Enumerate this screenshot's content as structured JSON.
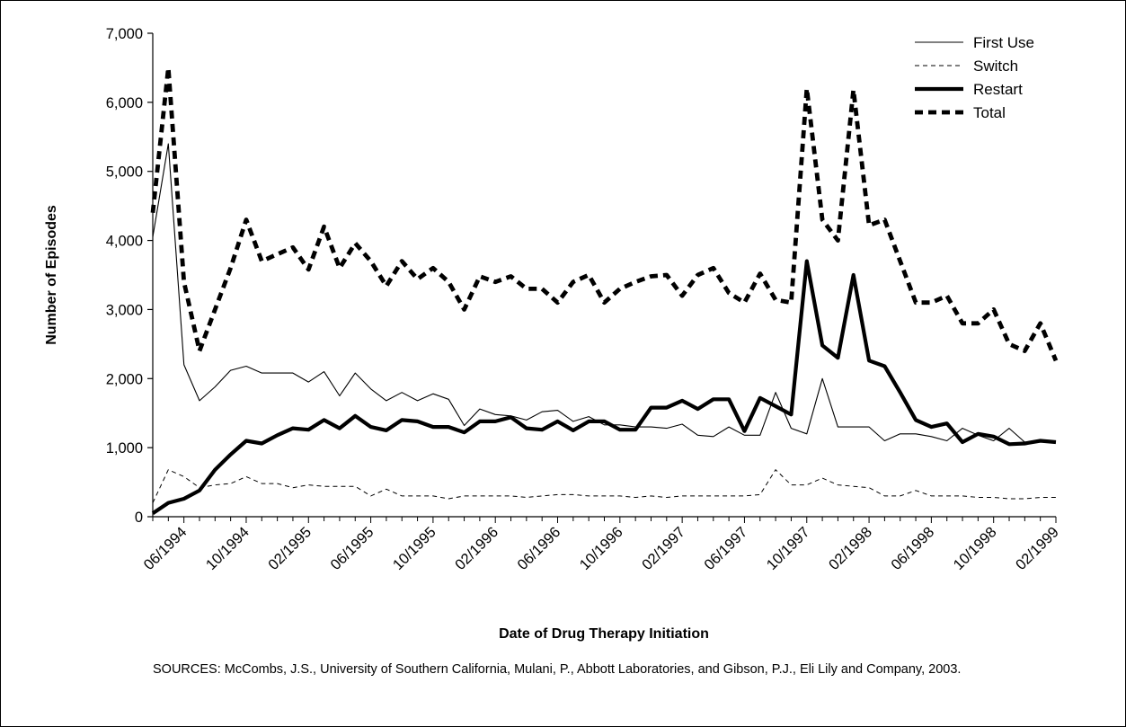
{
  "chart_data": {
    "type": "line",
    "title": "",
    "xlabel": "Date of Drug Therapy Initiation",
    "ylabel": "Number of Episodes",
    "ylim": [
      0,
      7000
    ],
    "yticks": [
      0,
      1000,
      2000,
      3000,
      4000,
      5000,
      6000,
      7000
    ],
    "ytick_labels": [
      "0",
      "1,000",
      "2,000",
      "3,000",
      "4,000",
      "5,000",
      "6,000",
      "7,000"
    ],
    "x_start": "04/1994",
    "x_end": "02/1999",
    "x_tick_labels": [
      "06/1994",
      "10/1994",
      "02/1995",
      "06/1995",
      "10/1995",
      "02/1996",
      "06/1996",
      "10/1996",
      "02/1997",
      "06/1997",
      "10/1997",
      "02/1998",
      "06/1998",
      "10/1998",
      "02/1999"
    ],
    "x": [
      "04/1994",
      "05/1994",
      "06/1994",
      "07/1994",
      "08/1994",
      "09/1994",
      "10/1994",
      "11/1994",
      "12/1994",
      "01/1995",
      "02/1995",
      "03/1995",
      "04/1995",
      "05/1995",
      "06/1995",
      "07/1995",
      "08/1995",
      "09/1995",
      "10/1995",
      "11/1995",
      "12/1995",
      "01/1996",
      "02/1996",
      "03/1996",
      "04/1996",
      "05/1996",
      "06/1996",
      "07/1996",
      "08/1996",
      "09/1996",
      "10/1996",
      "11/1996",
      "12/1996",
      "01/1997",
      "02/1997",
      "03/1997",
      "04/1997",
      "05/1997",
      "06/1997",
      "07/1997",
      "08/1997",
      "09/1997",
      "10/1997",
      "11/1997",
      "12/1997",
      "01/1998",
      "02/1998",
      "03/1998",
      "04/1998",
      "05/1998",
      "06/1998",
      "07/1998",
      "08/1998",
      "09/1998",
      "10/1998",
      "11/1998",
      "12/1998",
      "01/1999",
      "02/1999"
    ],
    "legend_position": "top-right",
    "grid": false,
    "series": [
      {
        "name": "First Use",
        "style": "thin-solid",
        "values": [
          4050,
          5400,
          2200,
          1680,
          1880,
          2120,
          2180,
          2080,
          2080,
          2080,
          1950,
          2100,
          1750,
          2080,
          1850,
          1680,
          1800,
          1680,
          1780,
          1700,
          1320,
          1560,
          1480,
          1460,
          1400,
          1520,
          1540,
          1380,
          1450,
          1330,
          1330,
          1300,
          1300,
          1280,
          1340,
          1180,
          1160,
          1300,
          1180,
          1180,
          1800,
          1280,
          1200,
          2000,
          1300,
          1300,
          1300,
          1100,
          1200,
          1200,
          1160,
          1100,
          1280,
          1180,
          1100,
          1280,
          1080,
          1080,
          1080
        ]
      },
      {
        "name": "Switch",
        "style": "thin-dashed",
        "values": [
          200,
          680,
          580,
          420,
          460,
          480,
          580,
          480,
          480,
          420,
          460,
          440,
          440,
          440,
          300,
          400,
          300,
          300,
          300,
          260,
          300,
          300,
          300,
          300,
          280,
          300,
          320,
          320,
          300,
          300,
          300,
          280,
          300,
          280,
          300,
          300,
          300,
          300,
          300,
          320,
          680,
          460,
          460,
          560,
          460,
          440,
          420,
          300,
          300,
          380,
          300,
          300,
          300,
          280,
          280,
          260,
          260,
          280,
          280
        ]
      },
      {
        "name": "Restart",
        "style": "thick-solid",
        "values": [
          50,
          200,
          260,
          380,
          680,
          900,
          1100,
          1060,
          1180,
          1280,
          1260,
          1400,
          1280,
          1460,
          1300,
          1250,
          1400,
          1380,
          1300,
          1300,
          1220,
          1380,
          1380,
          1440,
          1280,
          1260,
          1380,
          1250,
          1380,
          1380,
          1260,
          1260,
          1580,
          1580,
          1680,
          1560,
          1700,
          1700,
          1240,
          1720,
          1600,
          1480,
          3700,
          2480,
          2300,
          3500,
          2260,
          2180,
          1800,
          1400,
          1300,
          1350,
          1080,
          1200,
          1160,
          1050,
          1060,
          1100,
          1080
        ]
      },
      {
        "name": "Total",
        "style": "thick-dashed",
        "values": [
          4400,
          6500,
          3400,
          2400,
          3000,
          3600,
          4300,
          3700,
          3800,
          3900,
          3580,
          4200,
          3600,
          3960,
          3700,
          3340,
          3700,
          3440,
          3600,
          3400,
          3000,
          3480,
          3400,
          3480,
          3300,
          3300,
          3100,
          3400,
          3500,
          3100,
          3300,
          3400,
          3480,
          3500,
          3200,
          3500,
          3600,
          3240,
          3100,
          3520,
          3140,
          3100,
          6200,
          4300,
          4000,
          6180,
          4220,
          4300,
          3700,
          3100,
          3100,
          3200,
          2800,
          2800,
          3000,
          2500,
          2400,
          2800,
          2260
        ]
      }
    ]
  },
  "note": {
    "text": "SOURCES: McCombs, J.S., University of Southern California, Mulani, P., Abbott Laboratories, and Gibson, P.J., Eli Lily and Company, 2003."
  }
}
